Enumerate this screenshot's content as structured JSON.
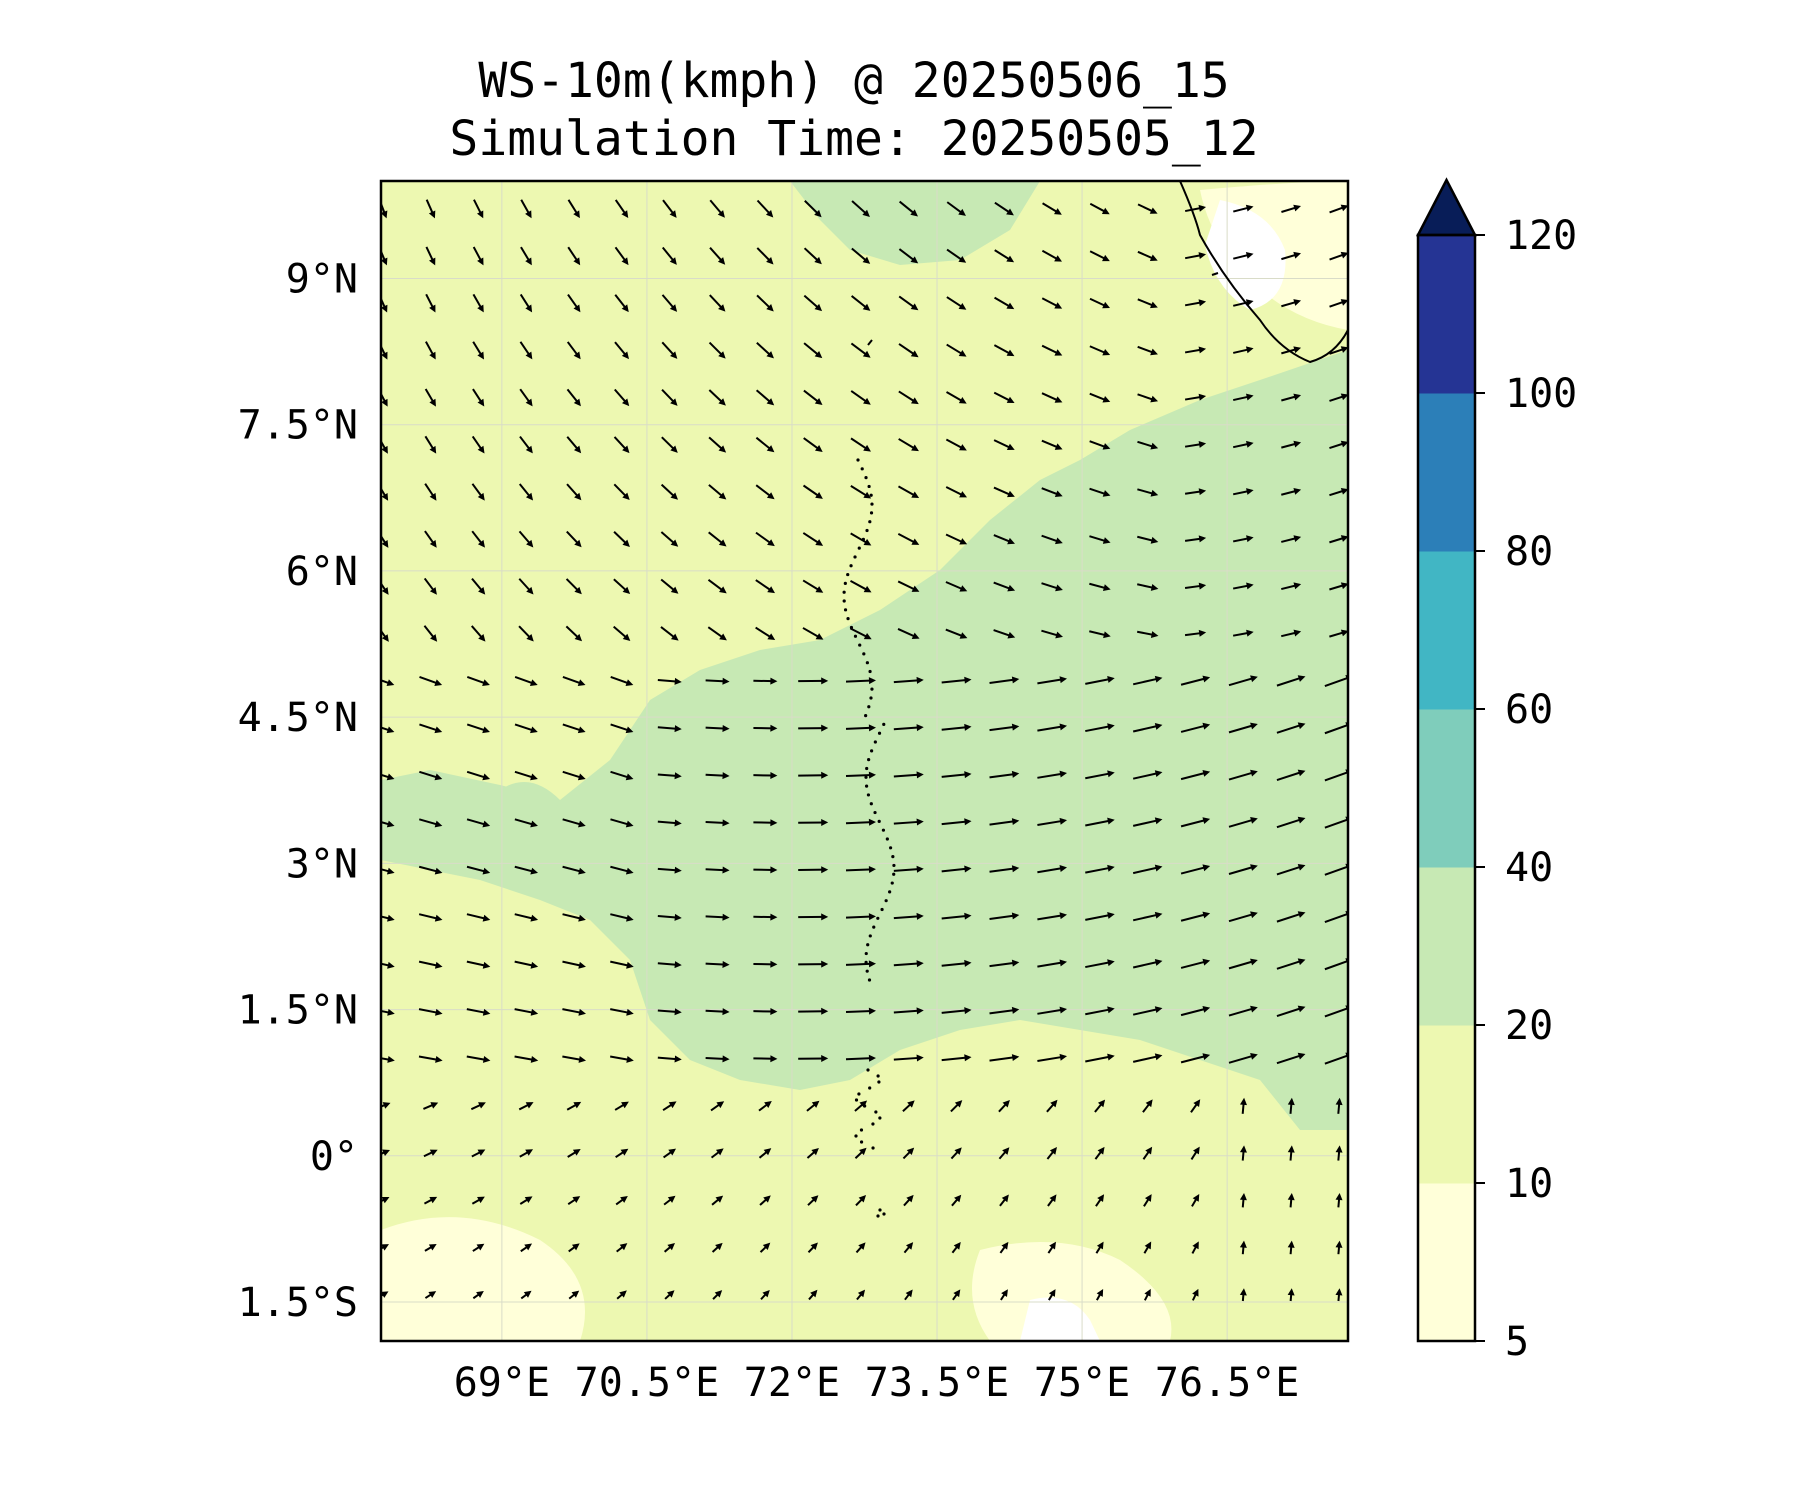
{
  "title": {
    "line1": "WS-10m(kmph) @ 20250506_15",
    "line2": "Simulation Time: 20250505_12"
  },
  "map": {
    "variable": "10 m wind speed (kmph) with wind vectors",
    "lon_range": [
      67.75,
      77.75
    ],
    "lat_range": [
      -1.9,
      10.0
    ],
    "lon_ticks": [
      {
        "value": 69.0,
        "label": "69°E"
      },
      {
        "value": 70.5,
        "label": "70.5°E"
      },
      {
        "value": 72.0,
        "label": "72°E"
      },
      {
        "value": 73.5,
        "label": "73.5°E"
      },
      {
        "value": 75.0,
        "label": "75°E"
      },
      {
        "value": 76.5,
        "label": "76.5°E"
      }
    ],
    "lat_ticks": [
      {
        "value": 9.0,
        "label": "9°N"
      },
      {
        "value": 7.5,
        "label": "7.5°N"
      },
      {
        "value": 6.0,
        "label": "6°N"
      },
      {
        "value": 4.5,
        "label": "4.5°N"
      },
      {
        "value": 3.0,
        "label": "3°N"
      },
      {
        "value": 1.5,
        "label": "1.5°N"
      },
      {
        "value": 0.0,
        "label": "0°"
      },
      {
        "value": -1.5,
        "label": "1.5°S"
      }
    ],
    "gridlines": true,
    "coastline": "southern India / Sri Lanka in the upper-right corner; Maldives atoll chain near 73.5°E"
  },
  "colorbar": {
    "levels": [
      {
        "value": 5,
        "label": "5"
      },
      {
        "value": 10,
        "label": "10"
      },
      {
        "value": 20,
        "label": "20"
      },
      {
        "value": 40,
        "label": "40"
      },
      {
        "value": 60,
        "label": "60"
      },
      {
        "value": 80,
        "label": "80"
      },
      {
        "value": 100,
        "label": "100"
      },
      {
        "value": 120,
        "label": "120"
      }
    ],
    "colors": [
      "#ffffd9",
      "#edf8b1",
      "#c7e9b4",
      "#7fcdbb",
      "#41b6c4",
      "#2c7fb8",
      "#253494",
      "#081d58"
    ],
    "extend": "max"
  }
}
